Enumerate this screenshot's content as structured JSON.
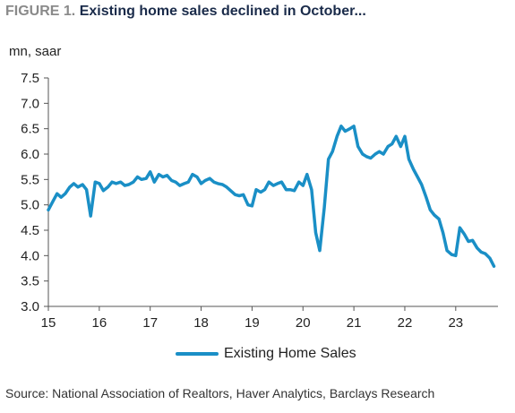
{
  "figure": {
    "label": "FIGURE 1.",
    "title": "Existing home sales declined in October...",
    "unit_label": "mn, saar",
    "source": "Source: National Association of Realtors, Haver Analytics, Barclays Research"
  },
  "colors": {
    "series": "#1a8fc6",
    "axis": "#555555"
  },
  "chart_data": {
    "type": "line",
    "title": "Existing home sales declined in October...",
    "ylabel": "mn, saar",
    "xlabel": "",
    "ylim": [
      3.0,
      7.5
    ],
    "xlim": [
      2015,
      2023.83
    ],
    "y_ticks": [
      3.0,
      3.5,
      4.0,
      4.5,
      5.0,
      5.5,
      6.0,
      6.5,
      7.0,
      7.5
    ],
    "y_tick_labels": [
      "3.0",
      "3.5",
      "4.0",
      "4.5",
      "5.0",
      "5.5",
      "6.0",
      "6.5",
      "7.0",
      "7.5"
    ],
    "x_ticks": [
      2015,
      2016,
      2017,
      2018,
      2019,
      2020,
      2021,
      2022,
      2023
    ],
    "x_tick_labels": [
      "15",
      "16",
      "17",
      "18",
      "19",
      "20",
      "21",
      "22",
      "23"
    ],
    "grid": false,
    "legend_position": "bottom",
    "series": [
      {
        "name": "Existing Home Sales",
        "color": "#1a8fc6",
        "points": [
          [
            2015.0,
            4.9
          ],
          [
            2015.08,
            5.05
          ],
          [
            2015.17,
            5.22
          ],
          [
            2015.25,
            5.15
          ],
          [
            2015.33,
            5.22
          ],
          [
            2015.42,
            5.35
          ],
          [
            2015.5,
            5.42
          ],
          [
            2015.58,
            5.35
          ],
          [
            2015.67,
            5.4
          ],
          [
            2015.75,
            5.3
          ],
          [
            2015.83,
            4.78
          ],
          [
            2015.92,
            5.45
          ],
          [
            2016.0,
            5.42
          ],
          [
            2016.08,
            5.28
          ],
          [
            2016.17,
            5.35
          ],
          [
            2016.25,
            5.45
          ],
          [
            2016.33,
            5.42
          ],
          [
            2016.42,
            5.45
          ],
          [
            2016.5,
            5.38
          ],
          [
            2016.58,
            5.4
          ],
          [
            2016.67,
            5.45
          ],
          [
            2016.75,
            5.55
          ],
          [
            2016.83,
            5.5
          ],
          [
            2016.92,
            5.52
          ],
          [
            2017.0,
            5.65
          ],
          [
            2017.08,
            5.45
          ],
          [
            2017.17,
            5.6
          ],
          [
            2017.25,
            5.55
          ],
          [
            2017.33,
            5.58
          ],
          [
            2017.42,
            5.48
          ],
          [
            2017.5,
            5.45
          ],
          [
            2017.58,
            5.38
          ],
          [
            2017.67,
            5.42
          ],
          [
            2017.75,
            5.45
          ],
          [
            2017.83,
            5.6
          ],
          [
            2017.92,
            5.55
          ],
          [
            2018.0,
            5.42
          ],
          [
            2018.08,
            5.48
          ],
          [
            2018.17,
            5.52
          ],
          [
            2018.25,
            5.45
          ],
          [
            2018.33,
            5.42
          ],
          [
            2018.42,
            5.4
          ],
          [
            2018.5,
            5.35
          ],
          [
            2018.58,
            5.28
          ],
          [
            2018.67,
            5.2
          ],
          [
            2018.75,
            5.18
          ],
          [
            2018.83,
            5.2
          ],
          [
            2018.92,
            5.0
          ],
          [
            2019.0,
            4.98
          ],
          [
            2019.08,
            5.3
          ],
          [
            2019.17,
            5.25
          ],
          [
            2019.25,
            5.3
          ],
          [
            2019.33,
            5.45
          ],
          [
            2019.42,
            5.38
          ],
          [
            2019.5,
            5.42
          ],
          [
            2019.58,
            5.45
          ],
          [
            2019.67,
            5.3
          ],
          [
            2019.75,
            5.3
          ],
          [
            2019.83,
            5.28
          ],
          [
            2019.92,
            5.45
          ],
          [
            2020.0,
            5.38
          ],
          [
            2020.08,
            5.6
          ],
          [
            2020.17,
            5.3
          ],
          [
            2020.25,
            4.45
          ],
          [
            2020.33,
            4.1
          ],
          [
            2020.42,
            4.95
          ],
          [
            2020.5,
            5.9
          ],
          [
            2020.58,
            6.05
          ],
          [
            2020.67,
            6.35
          ],
          [
            2020.75,
            6.55
          ],
          [
            2020.83,
            6.45
          ],
          [
            2020.92,
            6.5
          ],
          [
            2021.0,
            6.55
          ],
          [
            2021.08,
            6.15
          ],
          [
            2021.17,
            6.0
          ],
          [
            2021.25,
            5.95
          ],
          [
            2021.33,
            5.92
          ],
          [
            2021.42,
            6.0
          ],
          [
            2021.5,
            6.05
          ],
          [
            2021.58,
            6.0
          ],
          [
            2021.67,
            6.15
          ],
          [
            2021.75,
            6.2
          ],
          [
            2021.83,
            6.35
          ],
          [
            2021.92,
            6.15
          ],
          [
            2022.0,
            6.35
          ],
          [
            2022.08,
            5.9
          ],
          [
            2022.17,
            5.7
          ],
          [
            2022.25,
            5.55
          ],
          [
            2022.33,
            5.4
          ],
          [
            2022.42,
            5.15
          ],
          [
            2022.5,
            4.9
          ],
          [
            2022.58,
            4.8
          ],
          [
            2022.67,
            4.72
          ],
          [
            2022.75,
            4.45
          ],
          [
            2022.83,
            4.1
          ],
          [
            2022.92,
            4.02
          ],
          [
            2023.0,
            4.0
          ],
          [
            2023.08,
            4.55
          ],
          [
            2023.17,
            4.42
          ],
          [
            2023.25,
            4.28
          ],
          [
            2023.33,
            4.3
          ],
          [
            2023.42,
            4.15
          ],
          [
            2023.5,
            4.07
          ],
          [
            2023.58,
            4.04
          ],
          [
            2023.67,
            3.95
          ],
          [
            2023.75,
            3.79
          ]
        ]
      }
    ]
  }
}
